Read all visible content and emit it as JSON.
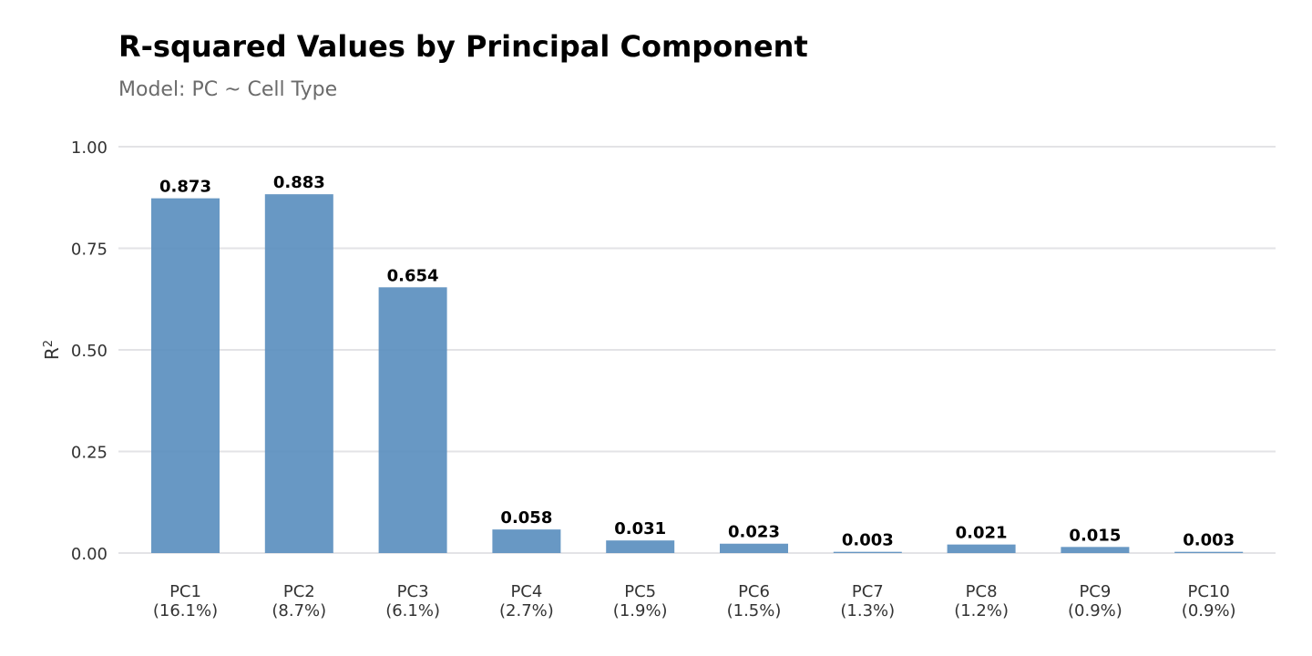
{
  "chart_data": {
    "type": "bar",
    "title": "R-squared Values by Principal Component",
    "subtitle": "Model: PC ~ Cell Type",
    "ylabel": "R",
    "ylabel_superscript": "2",
    "xlabel": "",
    "ylim": [
      0,
      1
    ],
    "yticks": [
      "0.00",
      "0.25",
      "0.50",
      "0.75",
      "1.00"
    ],
    "ytick_values": [
      0,
      0.25,
      0.5,
      0.75,
      1.0
    ],
    "categories": [
      "PC1",
      "PC2",
      "PC3",
      "PC4",
      "PC5",
      "PC6",
      "PC7",
      "PC8",
      "PC9",
      "PC10"
    ],
    "category_sublabels": [
      "(16.1%)",
      "(8.7%)",
      "(6.1%)",
      "(2.7%)",
      "(1.9%)",
      "(1.5%)",
      "(1.3%)",
      "(1.2%)",
      "(0.9%)",
      "(0.9%)"
    ],
    "values": [
      0.873,
      0.883,
      0.654,
      0.058,
      0.031,
      0.023,
      0.003,
      0.021,
      0.015,
      0.003
    ],
    "value_labels": [
      "0.873",
      "0.883",
      "0.654",
      "0.058",
      "0.031",
      "0.023",
      "0.003",
      "0.021",
      "0.015",
      "0.003"
    ],
    "bar_color": "#5b8fbf",
    "grid": true,
    "legend": "none"
  }
}
